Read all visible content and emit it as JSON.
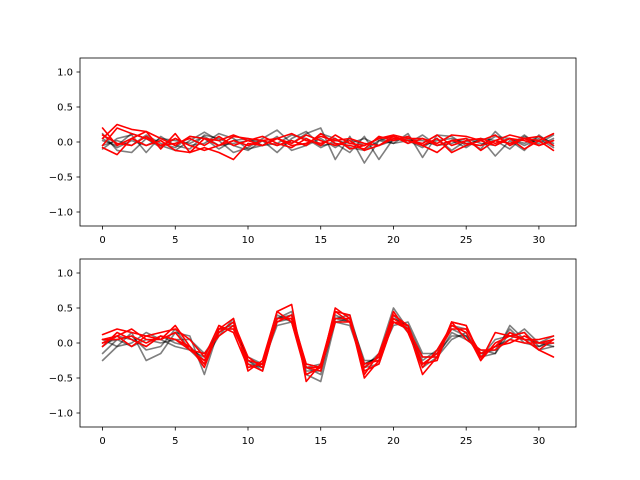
{
  "chart_data": [
    {
      "type": "line",
      "xlim": [
        -1.55,
        32.55
      ],
      "ylim": [
        -1.2,
        1.2
      ],
      "xticks": [
        0,
        5,
        10,
        15,
        20,
        25,
        30
      ],
      "yticks": [
        -1.0,
        -0.5,
        0.0,
        0.5,
        1.0
      ],
      "xtick_labels": [
        "0",
        "5",
        "10",
        "15",
        "20",
        "25",
        "30"
      ],
      "ytick_labels": [
        "−1.0",
        "−0.5",
        "0.0",
        "0.5",
        "1.0"
      ],
      "grid": false,
      "x": [
        0,
        1,
        2,
        3,
        4,
        5,
        6,
        7,
        8,
        9,
        10,
        11,
        12,
        13,
        14,
        15,
        16,
        17,
        18,
        19,
        20,
        21,
        22,
        23,
        24,
        25,
        26,
        27,
        28,
        29,
        30,
        31
      ],
      "series": [
        {
          "color": "#000000",
          "opacity": 0.5,
          "values": [
            0.12,
            -0.12,
            -0.15,
            0.05,
            -0.05,
            -0.12,
            0.02,
            0.14,
            0.02,
            -0.15,
            -0.08,
            0.05,
            0.17,
            -0.02,
            0.12,
            0.2,
            -0.25,
            0.08,
            -0.3,
            0.02,
            -0.02,
            0.12,
            -0.22,
            0.1,
            0.08,
            -0.05,
            0.05,
            -0.2,
            0.02,
            -0.12,
            0.1,
            -0.05
          ]
        },
        {
          "color": "#000000",
          "opacity": 0.5,
          "values": [
            -0.1,
            0.05,
            0.1,
            -0.15,
            0.08,
            -0.05,
            -0.1,
            0.1,
            0.05,
            -0.05,
            -0.12,
            0.02,
            -0.15,
            0.05,
            0.15,
            -0.05,
            -0.02,
            -0.15,
            0.08,
            -0.25,
            0.05,
            0.02,
            -0.08,
            0.05,
            -0.12,
            0.02,
            -0.1,
            0.15,
            -0.05,
            0.1,
            -0.05,
            0.05
          ]
        },
        {
          "color": "#000000",
          "opacity": 0.5,
          "values": [
            0.02,
            -0.05,
            0.12,
            0.05,
            -0.08,
            0.05,
            -0.05,
            -0.02,
            0.12,
            0.05,
            -0.1,
            -0.05,
            0.08,
            -0.12,
            -0.05,
            0.12,
            0.05,
            -0.08,
            -0.12,
            0.02,
            0.08,
            -0.02,
            0.1,
            -0.05,
            0.02,
            -0.08,
            0.05,
            0.02,
            -0.1,
            0.08,
            -0.02,
            0.1
          ]
        },
        {
          "color": "#000000",
          "opacity": 0.5,
          "values": [
            -0.05,
            0.02,
            -0.05,
            0.1,
            -0.02,
            -0.08,
            0.08,
            0.05,
            -0.1,
            0.02,
            0.05,
            -0.05,
            -0.02,
            0.1,
            0.05,
            -0.08,
            0.02,
            -0.02,
            0.05,
            -0.05,
            0.02,
            0.05,
            -0.05,
            0.02,
            0.05,
            -0.02,
            -0.05,
            0.08,
            0.05,
            -0.05,
            0.05,
            -0.08
          ]
        },
        {
          "color": "#000000",
          "opacity": 0.5,
          "values": [
            0.05,
            -0.08,
            0.02,
            -0.05,
            0.05,
            0.02,
            -0.02,
            0.08,
            -0.05,
            -0.02,
            0.02,
            0.02,
            -0.05,
            0.02,
            -0.05,
            0.05,
            -0.08,
            0.05,
            -0.05,
            0.05,
            -0.02,
            0.02,
            0.02,
            -0.05,
            -0.02,
            0.05,
            -0.02,
            -0.05,
            0.05,
            -0.02,
            0.08,
            -0.02
          ]
        },
        {
          "color": "#ff0000",
          "opacity": 1,
          "values": [
            0.2,
            -0.05,
            0.05,
            0.15,
            0.05,
            -0.05,
            0.08,
            0.05,
            0.02,
            0.1,
            0.02,
            -0.05,
            0.05,
            0.12,
            0.02,
            -0.02,
            0.05,
            -0.1,
            -0.05,
            0.05,
            0.1,
            0.05,
            0.05,
            -0.02,
            0.1,
            0.08,
            0.02,
            0.1,
            -0.05,
            0.05,
            0.02,
            0.12
          ]
        },
        {
          "color": "#ff0000",
          "opacity": 1,
          "values": [
            0.05,
            0.25,
            0.18,
            0.15,
            -0.1,
            0.12,
            -0.15,
            0.05,
            -0.05,
            0.08,
            0.05,
            0.02,
            -0.05,
            0.02,
            -0.05,
            0.12,
            -0.02,
            -0.05,
            -0.1,
            0.08,
            0.02,
            0.08,
            -0.05,
            -0.15,
            0.02,
            0.05,
            -0.12,
            0.02,
            0.1,
            0.05,
            0.08,
            -0.05
          ]
        },
        {
          "color": "#ff0000",
          "opacity": 1,
          "values": [
            -0.05,
            0.2,
            0.12,
            0.05,
            -0.05,
            -0.02,
            0.05,
            -0.05,
            0.08,
            -0.05,
            0.02,
            0.08,
            -0.02,
            -0.08,
            0.05,
            -0.05,
            0.1,
            -0.02,
            -0.05,
            0.05,
            0.08,
            0.02,
            -0.02,
            0.1,
            -0.05,
            0.02,
            0.05,
            -0.02,
            0.05,
            0.02,
            -0.05,
            0.02
          ]
        },
        {
          "color": "#ff0000",
          "opacity": 1,
          "values": [
            -0.08,
            -0.18,
            0.05,
            -0.05,
            0.02,
            -0.12,
            -0.15,
            -0.08,
            -0.15,
            -0.25,
            -0.02,
            -0.05,
            0.05,
            -0.02,
            0.1,
            0.02,
            -0.05,
            0.02,
            -0.12,
            -0.05,
            0.05,
            0.02,
            -0.05,
            0.05,
            -0.15,
            -0.05,
            0.02,
            -0.05,
            0.05,
            -0.1,
            0.02,
            -0.12
          ]
        },
        {
          "color": "#ff0000",
          "opacity": 1,
          "values": [
            0.1,
            -0.02,
            -0.05,
            0.08,
            -0.05,
            0.05,
            -0.05,
            -0.12,
            -0.05,
            0.02,
            -0.05,
            0.02,
            0.05,
            -0.05,
            -0.02,
            0.08,
            0.02,
            0.05,
            -0.02,
            -0.05,
            0.08,
            -0.02,
            0.05,
            -0.05,
            0.02,
            -0.02,
            -0.05,
            0.02,
            -0.02,
            0.05,
            -0.05,
            0.02
          ]
        }
      ]
    },
    {
      "type": "line",
      "xlim": [
        -1.55,
        32.55
      ],
      "ylim": [
        -1.2,
        1.2
      ],
      "xticks": [
        0,
        5,
        10,
        15,
        20,
        25,
        30
      ],
      "yticks": [
        -1.0,
        -0.5,
        0.0,
        0.5,
        1.0
      ],
      "xtick_labels": [
        "0",
        "5",
        "10",
        "15",
        "20",
        "25",
        "30"
      ],
      "ytick_labels": [
        "−1.0",
        "−0.5",
        "0.0",
        "0.5",
        "1.0"
      ],
      "grid": false,
      "x": [
        0,
        1,
        2,
        3,
        4,
        5,
        6,
        7,
        8,
        9,
        10,
        11,
        12,
        13,
        14,
        15,
        16,
        17,
        18,
        19,
        20,
        21,
        22,
        23,
        24,
        25,
        26,
        27,
        28,
        29,
        30,
        31
      ],
      "series": [
        {
          "color": "#000000",
          "opacity": 0.5,
          "values": [
            -0.25,
            -0.05,
            0.15,
            -0.25,
            -0.15,
            0.15,
            0.1,
            -0.45,
            0.2,
            0.25,
            -0.25,
            -0.4,
            0.35,
            0.4,
            -0.45,
            -0.55,
            0.3,
            0.25,
            -0.35,
            -0.15,
            0.5,
            0.2,
            -0.35,
            -0.2,
            0.05,
            0.15,
            -0.2,
            -0.15,
            0.25,
            0.05,
            -0.1,
            -0.05
          ]
        },
        {
          "color": "#000000",
          "opacity": 0.5,
          "values": [
            -0.15,
            0.05,
            0.1,
            -0.1,
            -0.05,
            0.2,
            -0.1,
            -0.3,
            0.15,
            0.3,
            -0.3,
            -0.35,
            0.4,
            0.3,
            -0.35,
            -0.45,
            0.35,
            0.3,
            -0.3,
            -0.2,
            0.4,
            0.15,
            -0.3,
            -0.15,
            0.1,
            0.1,
            -0.15,
            -0.1,
            0.2,
            0.0,
            -0.05,
            0.0
          ]
        },
        {
          "color": "#000000",
          "opacity": 0.5,
          "values": [
            0.05,
            -0.05,
            0.0,
            0.15,
            0.05,
            -0.05,
            -0.1,
            -0.2,
            0.2,
            0.2,
            -0.2,
            -0.3,
            0.3,
            0.35,
            -0.3,
            -0.35,
            0.3,
            0.35,
            -0.25,
            -0.25,
            0.35,
            0.25,
            -0.2,
            -0.2,
            0.15,
            0.05,
            -0.1,
            -0.15,
            0.15,
            0.05,
            0.0,
            -0.05
          ]
        },
        {
          "color": "#000000",
          "opacity": 0.5,
          "values": [
            -0.05,
            0.1,
            0.05,
            -0.05,
            0.1,
            0.0,
            -0.05,
            -0.25,
            0.1,
            0.35,
            -0.35,
            -0.3,
            0.25,
            0.3,
            -0.4,
            -0.4,
            0.4,
            0.3,
            -0.35,
            -0.3,
            0.3,
            0.2,
            -0.25,
            -0.1,
            0.2,
            0.1,
            -0.2,
            0.05,
            0.1,
            0.15,
            -0.05,
            0.05
          ]
        },
        {
          "color": "#000000",
          "opacity": 0.5,
          "values": [
            0.0,
            0.05,
            -0.05,
            0.05,
            0.0,
            0.05,
            0.05,
            -0.15,
            0.15,
            0.3,
            -0.25,
            -0.35,
            0.35,
            0.45,
            -0.35,
            -0.3,
            0.35,
            0.4,
            -0.3,
            -0.2,
            0.25,
            0.3,
            -0.15,
            -0.15,
            0.25,
            0.2,
            -0.15,
            -0.05,
            0.05,
            0.2,
            0.0,
            0.1
          ]
        },
        {
          "color": "#ff0000",
          "opacity": 1,
          "values": [
            0.12,
            0.2,
            0.15,
            0.1,
            0.15,
            0.2,
            0.05,
            -0.2,
            0.25,
            0.15,
            -0.35,
            -0.3,
            0.45,
            0.3,
            -0.45,
            -0.35,
            0.5,
            0.35,
            -0.5,
            -0.25,
            0.35,
            0.2,
            -0.45,
            -0.2,
            0.3,
            0.25,
            -0.2,
            -0.05,
            0.15,
            0.05,
            0.05,
            0.1
          ]
        },
        {
          "color": "#ff0000",
          "opacity": 1,
          "values": [
            0.05,
            0.1,
            0.2,
            0.05,
            0.05,
            0.25,
            -0.05,
            -0.35,
            0.2,
            0.35,
            -0.4,
            -0.25,
            0.45,
            0.55,
            -0.55,
            -0.3,
            0.45,
            0.4,
            -0.45,
            -0.15,
            0.4,
            0.25,
            -0.3,
            -0.25,
            0.3,
            0.25,
            -0.25,
            0.15,
            0.1,
            0.15,
            -0.1,
            0.05
          ]
        },
        {
          "color": "#ff0000",
          "opacity": 1,
          "values": [
            -0.05,
            0.15,
            0.05,
            -0.05,
            0.1,
            0.05,
            -0.1,
            -0.25,
            0.15,
            0.3,
            -0.2,
            -0.35,
            0.35,
            0.35,
            -0.35,
            -0.4,
            0.45,
            0.3,
            -0.35,
            -0.2,
            0.45,
            0.15,
            -0.35,
            -0.1,
            0.25,
            0.15,
            -0.25,
            0.0,
            0.1,
            0.05,
            -0.1,
            -0.2
          ]
        },
        {
          "color": "#ff0000",
          "opacity": 1,
          "values": [
            0.0,
            0.1,
            -0.05,
            0.1,
            0.05,
            0.15,
            -0.1,
            -0.15,
            0.1,
            0.25,
            -0.3,
            -0.4,
            0.35,
            0.35,
            -0.35,
            -0.35,
            0.35,
            0.35,
            -0.3,
            -0.25,
            0.3,
            0.2,
            -0.2,
            -0.2,
            0.3,
            0.05,
            -0.1,
            -0.1,
            0.05,
            0.0,
            0.0,
            0.05
          ]
        },
        {
          "color": "#ff0000",
          "opacity": 1,
          "values": [
            0.05,
            0.05,
            0.1,
            0.0,
            0.1,
            0.05,
            -0.05,
            -0.3,
            0.2,
            0.2,
            -0.25,
            -0.3,
            0.3,
            0.4,
            -0.3,
            -0.35,
            0.3,
            0.3,
            -0.4,
            -0.3,
            0.3,
            0.25,
            -0.3,
            -0.15,
            0.2,
            0.2,
            -0.15,
            -0.05,
            0.0,
            0.1,
            0.0,
            0.0
          ]
        }
      ]
    }
  ]
}
